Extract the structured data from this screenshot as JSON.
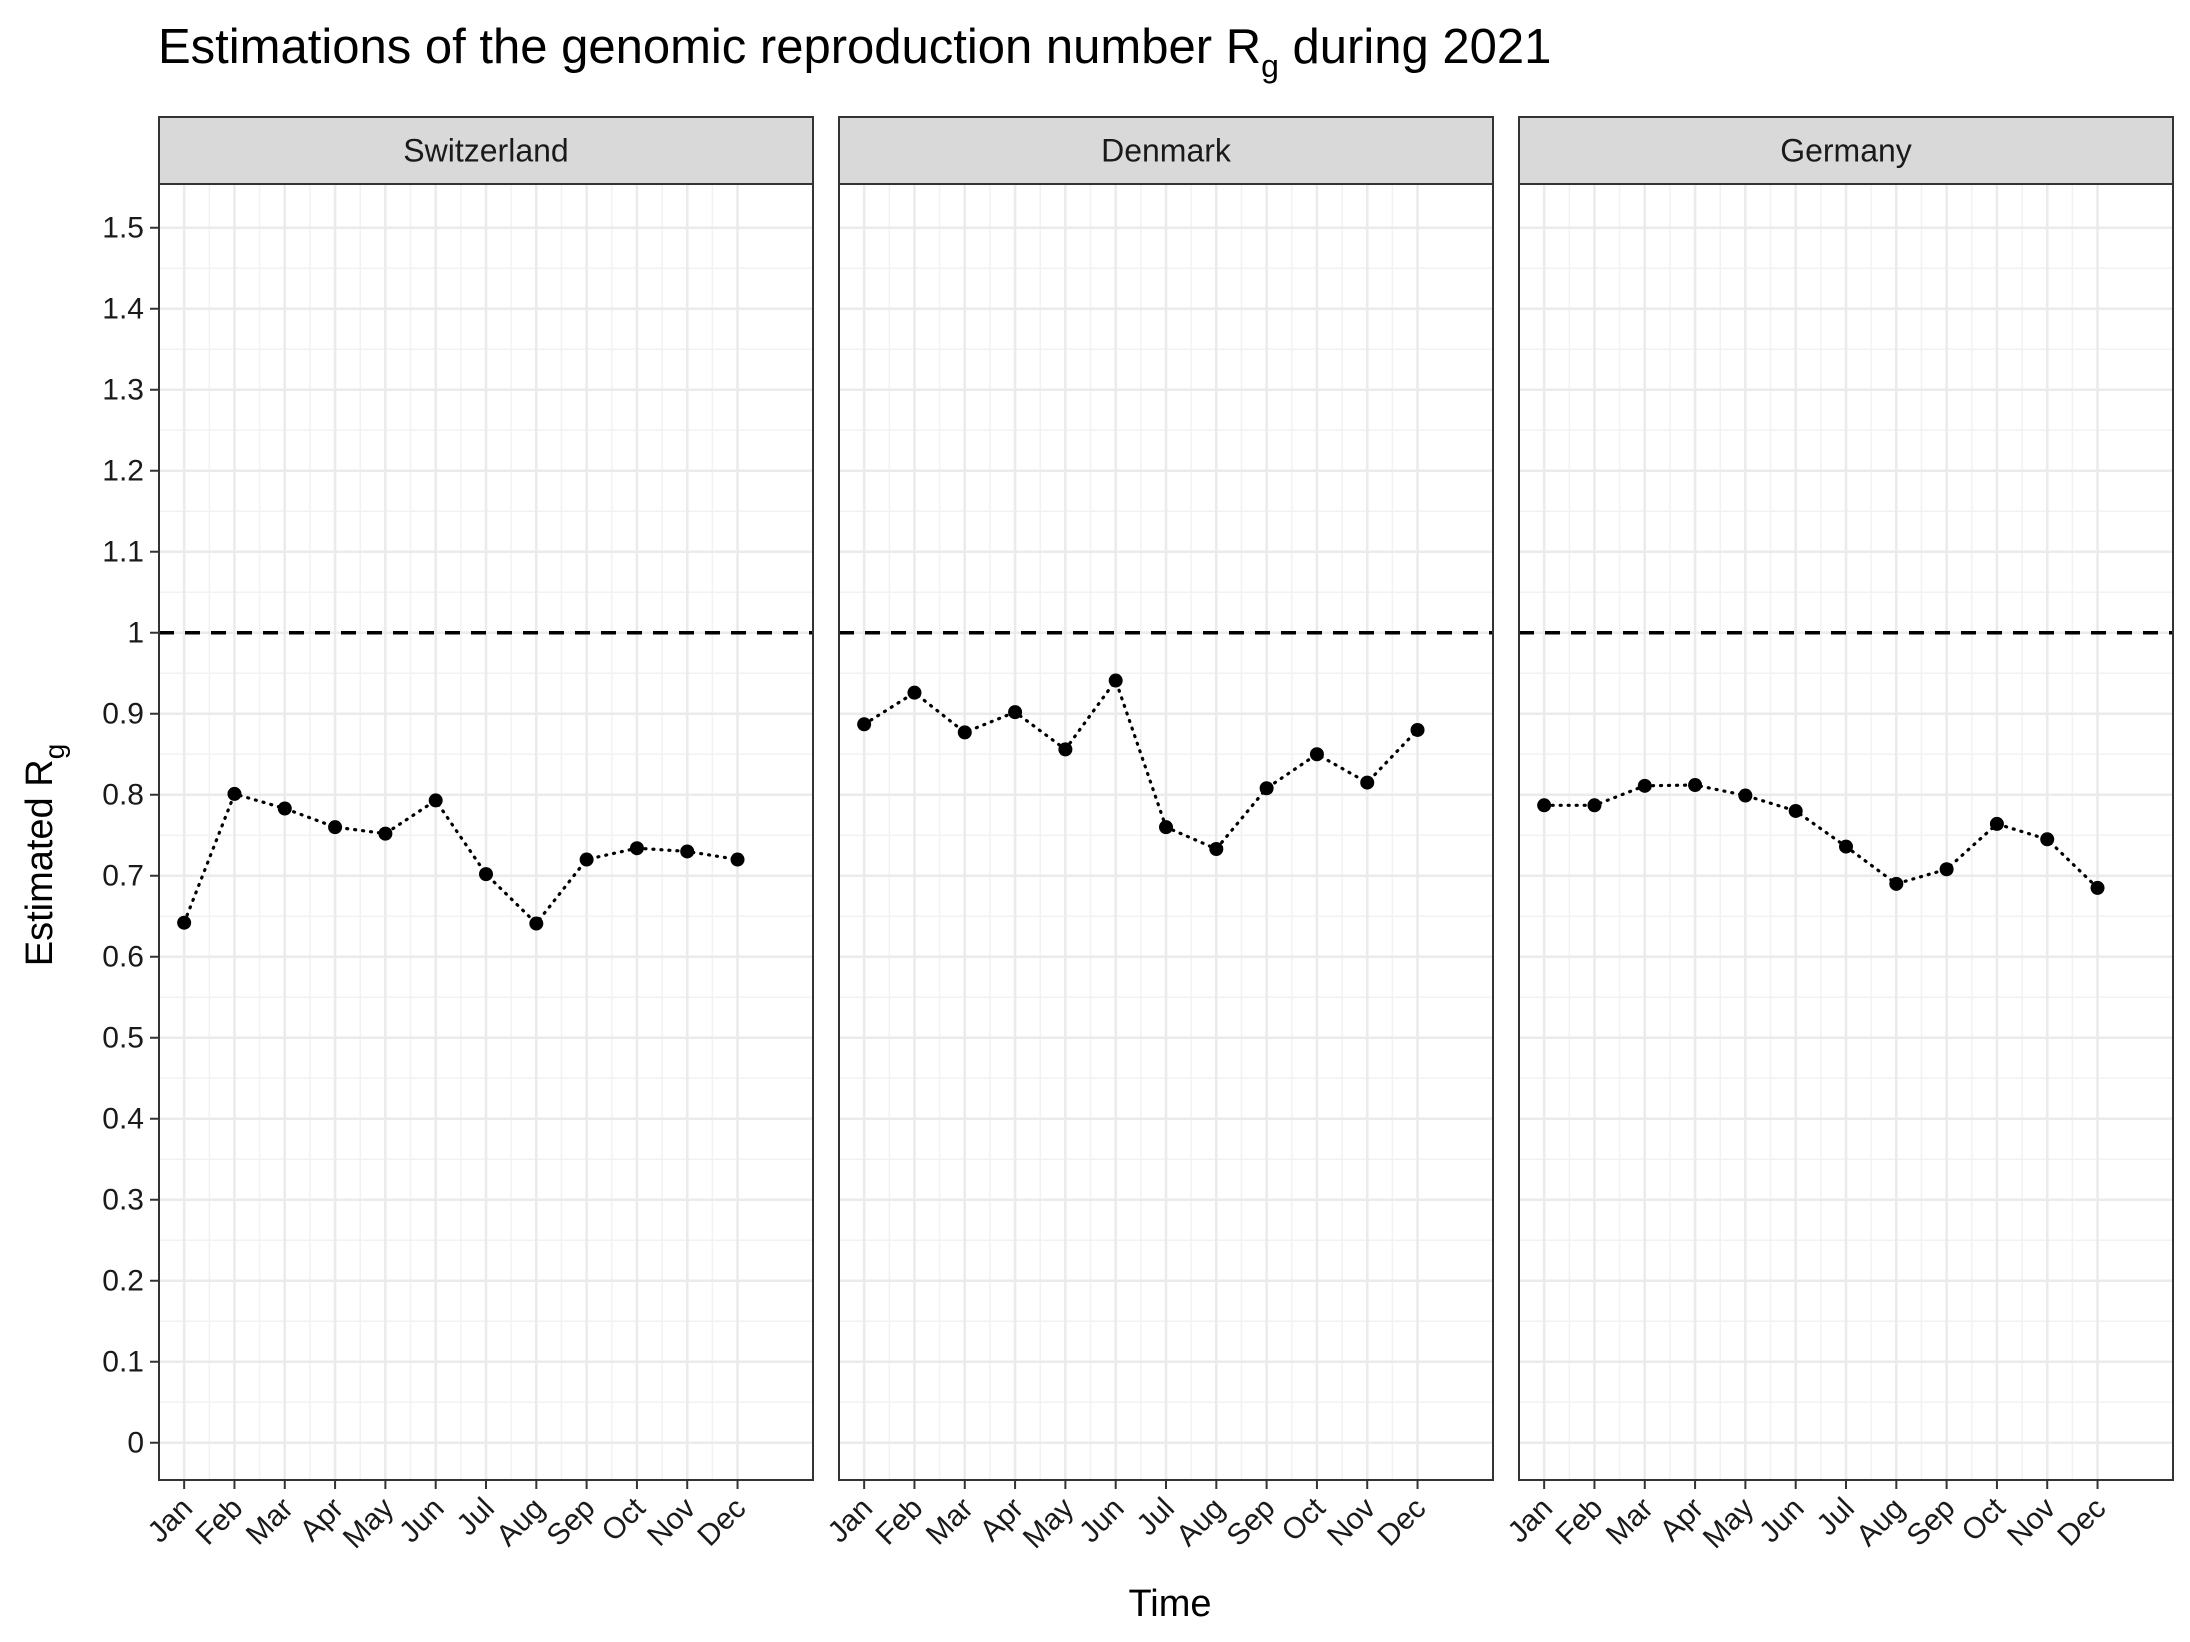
{
  "chart_data": {
    "type": "scatter",
    "title": "Estimations of the genomic reproduction number",
    "title_symbol": "R",
    "title_subscript": "g",
    "title_suffix": "during 2021",
    "xlabel": "Time",
    "ylabel": "Estimated",
    "ylabel_symbol": "R",
    "ylabel_subscript": "g",
    "categories": [
      "Jan",
      "Feb",
      "Mar",
      "Apr",
      "May",
      "Jun",
      "Jul",
      "Aug",
      "Sep",
      "Oct",
      "Nov",
      "Dec"
    ],
    "y_ticks": [
      "0",
      "0.1",
      "0.2",
      "0.3",
      "0.4",
      "0.5",
      "0.6",
      "0.7",
      "0.8",
      "0.9",
      "1",
      "1.1",
      "1.2",
      "1.3",
      "1.4",
      "1.5"
    ],
    "ylim": [
      -0.046,
      1.554
    ],
    "reference_line": 1,
    "grid": true,
    "line_style": "dotted",
    "point_color": "#000000",
    "panels": [
      {
        "name": "Switzerland",
        "values": [
          0.642,
          0.801,
          0.783,
          0.76,
          0.752,
          0.793,
          0.702,
          0.641,
          0.72,
          0.734,
          0.73,
          0.72
        ]
      },
      {
        "name": "Denmark",
        "values": [
          0.887,
          0.926,
          0.877,
          0.902,
          0.856,
          0.941,
          0.76,
          0.733,
          0.808,
          0.85,
          0.815,
          0.88
        ]
      },
      {
        "name": "Germany",
        "values": [
          0.787,
          0.787,
          0.811,
          0.812,
          0.799,
          0.78,
          0.736,
          0.69,
          0.708,
          0.764,
          0.745,
          0.685
        ]
      }
    ]
  }
}
